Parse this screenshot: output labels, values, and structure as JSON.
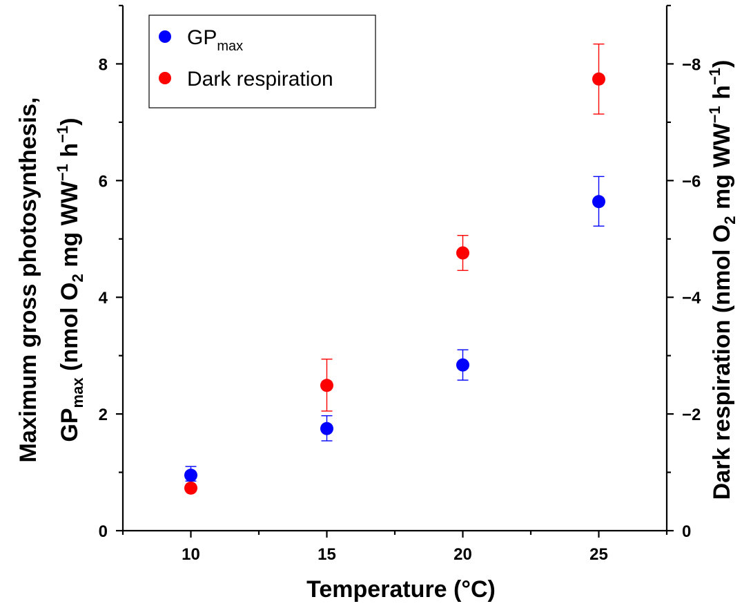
{
  "chart_data": {
    "type": "scatter",
    "x": [
      10,
      15,
      20,
      25
    ],
    "xlabel": "Temperature (°C)",
    "xlim": [
      7.5,
      27.5
    ],
    "xticks": [
      10,
      15,
      20,
      25
    ],
    "xtick_labels": [
      "10",
      "15",
      "20",
      "25"
    ],
    "ylabel_line1": "Maximum gross photosynthesis,",
    "ylabel_line2": {
      "gp": "GP",
      "gp_sub": "max",
      "mid": " (nmol O",
      "o2_sub": "2",
      "mid2": " mg WW",
      "ww_sup": "−1",
      "h": " h",
      "h_sup": "−1",
      "end": ")"
    },
    "ylim": [
      0,
      9
    ],
    "yticks": [
      0,
      2,
      4,
      6,
      8
    ],
    "ytick_labels": [
      "0",
      "2",
      "4",
      "6",
      "8"
    ],
    "y2label": {
      "pre": "Dark respiration (nmol O",
      "o2_sub": "2",
      "mid": " mg WW",
      "ww_sup": "−1",
      "h": " h",
      "h_sup": "−1",
      "end": ")"
    },
    "y2lim": [
      0,
      -9
    ],
    "y2ticks": [
      0,
      -2,
      -4,
      -6,
      -8
    ],
    "y2tick_labels": [
      "0",
      "−2",
      "−4",
      "−6",
      "−8"
    ],
    "legend_position": "top-left",
    "grid": false,
    "series": [
      {
        "name": "GP",
        "name_sub": "max",
        "axis": "left",
        "color": "#0000ff",
        "values": [
          0.95,
          1.75,
          2.84,
          5.64
        ],
        "err_low": [
          0.1,
          0.21,
          0.26,
          0.42
        ],
        "err_high": [
          0.15,
          0.22,
          0.26,
          0.43
        ]
      },
      {
        "name": "Dark respiration",
        "axis": "right",
        "color": "#ff0000",
        "values": [
          -0.73,
          -2.49,
          -4.76,
          -7.74
        ],
        "err_low": [
          0,
          0.44,
          0.3,
          0.6
        ],
        "err_high": [
          0,
          0.45,
          0.3,
          0.6
        ]
      }
    ]
  }
}
